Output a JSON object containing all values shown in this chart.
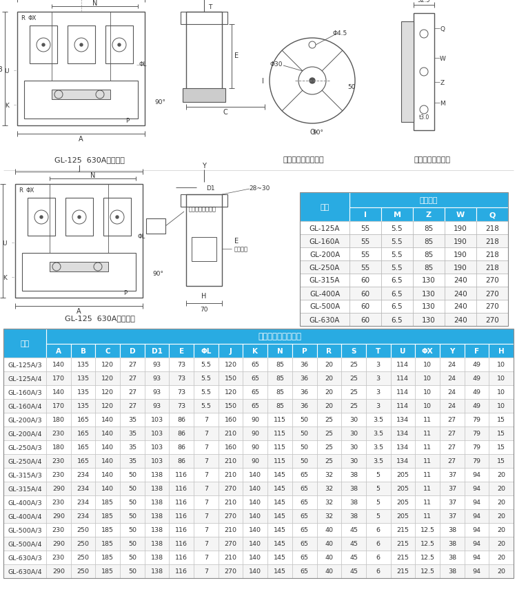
{
  "header_bg": "#29ABE2",
  "label1": "GL-125  630A直接操作",
  "label2": "柜外手柄座安装尺寸",
  "label3": "柜外操作安装底板",
  "label4": "GL-125  630A柜外操作",
  "table1_title": "底板尺寸",
  "table1_col1": "规格",
  "table1_cols": [
    "I",
    "M",
    "Z",
    "W",
    "Q"
  ],
  "table1_rows": [
    [
      "GL-125A",
      "55",
      "5.5",
      "85",
      "190",
      "218"
    ],
    [
      "GL-160A",
      "55",
      "5.5",
      "85",
      "190",
      "218"
    ],
    [
      "GL-200A",
      "55",
      "5.5",
      "85",
      "190",
      "218"
    ],
    [
      "GL-250A",
      "55",
      "5.5",
      "85",
      "190",
      "218"
    ],
    [
      "GL-315A",
      "60",
      "6.5",
      "130",
      "240",
      "270"
    ],
    [
      "GL-400A",
      "60",
      "6.5",
      "130",
      "240",
      "270"
    ],
    [
      "GL-500A",
      "60",
      "6.5",
      "130",
      "240",
      "270"
    ],
    [
      "GL-630A",
      "60",
      "6.5",
      "130",
      "240",
      "270"
    ]
  ],
  "table2_title": "外型尺寸与安装尺寸",
  "table2_col1": "规格",
  "table2_cols": [
    "A",
    "B",
    "C",
    "D",
    "D1",
    "E",
    "ΦL",
    "J",
    "K",
    "N",
    "P",
    "R",
    "S",
    "T",
    "U",
    "ΦX",
    "Y",
    "F",
    "H"
  ],
  "table2_rows": [
    [
      "GL-125A/3",
      "140",
      "135",
      "120",
      "27",
      "93",
      "73",
      "5.5",
      "120",
      "65",
      "85",
      "36",
      "20",
      "25",
      "3",
      "114",
      "10",
      "24",
      "49",
      "10"
    ],
    [
      "GL-125A/4",
      "170",
      "135",
      "120",
      "27",
      "93",
      "73",
      "5.5",
      "150",
      "65",
      "85",
      "36",
      "20",
      "25",
      "3",
      "114",
      "10",
      "24",
      "49",
      "10"
    ],
    [
      "GL-160A/3",
      "140",
      "135",
      "120",
      "27",
      "93",
      "73",
      "5.5",
      "120",
      "65",
      "85",
      "36",
      "20",
      "25",
      "3",
      "114",
      "10",
      "24",
      "49",
      "10"
    ],
    [
      "GL-160A/4",
      "170",
      "135",
      "120",
      "27",
      "93",
      "73",
      "5.5",
      "150",
      "65",
      "85",
      "36",
      "20",
      "25",
      "3",
      "114",
      "10",
      "24",
      "49",
      "10"
    ],
    [
      "GL-200A/3",
      "180",
      "165",
      "140",
      "35",
      "103",
      "86",
      "7",
      "160",
      "90",
      "115",
      "50",
      "25",
      "30",
      "3.5",
      "134",
      "11",
      "27",
      "79",
      "15"
    ],
    [
      "GL-200A/4",
      "230",
      "165",
      "140",
      "35",
      "103",
      "86",
      "7",
      "210",
      "90",
      "115",
      "50",
      "25",
      "30",
      "3.5",
      "134",
      "11",
      "27",
      "79",
      "15"
    ],
    [
      "GL-250A/3",
      "180",
      "165",
      "140",
      "35",
      "103",
      "86",
      "7",
      "160",
      "90",
      "115",
      "50",
      "25",
      "30",
      "3.5",
      "134",
      "11",
      "27",
      "79",
      "15"
    ],
    [
      "GL-250A/4",
      "230",
      "165",
      "140",
      "35",
      "103",
      "86",
      "7",
      "210",
      "90",
      "115",
      "50",
      "25",
      "30",
      "3.5",
      "134",
      "11",
      "27",
      "79",
      "15"
    ],
    [
      "GL-315A/3",
      "230",
      "234",
      "140",
      "50",
      "138",
      "116",
      "7",
      "210",
      "140",
      "145",
      "65",
      "32",
      "38",
      "5",
      "205",
      "11",
      "37",
      "94",
      "20"
    ],
    [
      "GL-315A/4",
      "290",
      "234",
      "140",
      "50",
      "138",
      "116",
      "7",
      "270",
      "140",
      "145",
      "65",
      "32",
      "38",
      "5",
      "205",
      "11",
      "37",
      "94",
      "20"
    ],
    [
      "GL-400A/3",
      "230",
      "234",
      "185",
      "50",
      "138",
      "116",
      "7",
      "210",
      "140",
      "145",
      "65",
      "32",
      "38",
      "5",
      "205",
      "11",
      "37",
      "94",
      "20"
    ],
    [
      "GL-400A/4",
      "290",
      "234",
      "185",
      "50",
      "138",
      "116",
      "7",
      "270",
      "140",
      "145",
      "65",
      "32",
      "38",
      "5",
      "205",
      "11",
      "37",
      "94",
      "20"
    ],
    [
      "GL-500A/3",
      "230",
      "250",
      "185",
      "50",
      "138",
      "116",
      "7",
      "210",
      "140",
      "145",
      "65",
      "40",
      "45",
      "6",
      "215",
      "12.5",
      "38",
      "94",
      "20"
    ],
    [
      "GL-500A/4",
      "290",
      "250",
      "185",
      "50",
      "138",
      "116",
      "7",
      "270",
      "140",
      "145",
      "65",
      "40",
      "45",
      "6",
      "215",
      "12.5",
      "38",
      "94",
      "20"
    ],
    [
      "GL-630A/3",
      "230",
      "250",
      "185",
      "50",
      "138",
      "116",
      "7",
      "210",
      "140",
      "145",
      "65",
      "40",
      "45",
      "6",
      "215",
      "12.5",
      "38",
      "94",
      "20"
    ],
    [
      "GL-630A/4",
      "290",
      "250",
      "185",
      "50",
      "138",
      "116",
      "7",
      "270",
      "140",
      "145",
      "65",
      "40",
      "45",
      "6",
      "215",
      "12.5",
      "38",
      "94",
      "20"
    ]
  ],
  "bg_color": "#FFFFFF",
  "text_color": "#333333",
  "alt_row": "#F5F5F5",
  "draw_color": "#555555"
}
